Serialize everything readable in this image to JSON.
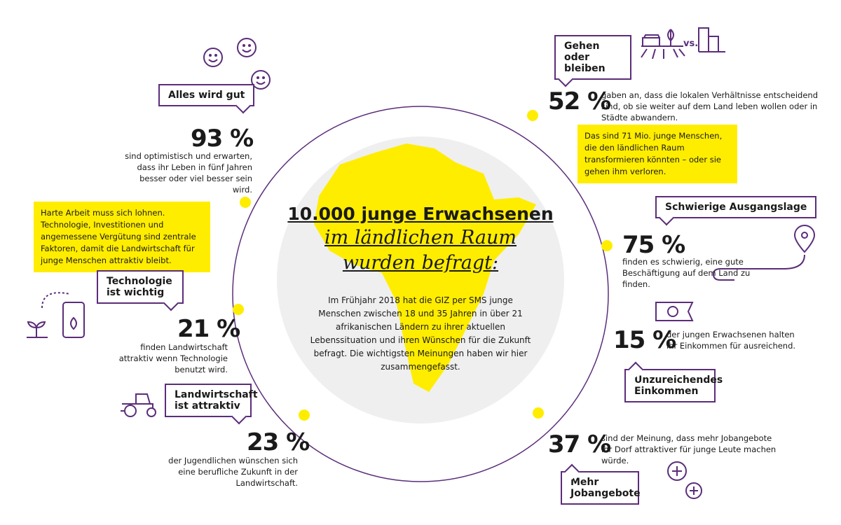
{
  "colors": {
    "accent": "#5b2d7a",
    "highlight": "#ffed00",
    "circle": "#efefef"
  },
  "center": {
    "title_line1": "10.000 junge Erwachsenen",
    "title_line2": "im ländlichen Raum",
    "title_line3": "wurden befragt:",
    "text": "Im Frühjahr 2018 hat die GIZ per SMS junge Menschen zwischen 18 und 35 Jahren in über 21 afrikanischen Ländern zu ihrer aktuellen Lebenssituation und ihren Wünschen für die Zukunft befragt. Die wichtigsten Meinungen haben wir hier zusammengefasst."
  },
  "stats": [
    {
      "label": "Alles wird gut",
      "value": "93 %",
      "text": "sind optimistisch und erwarten, dass ihr Leben in fünf Jahren besser oder viel besser sein wird.",
      "icon": "smiley-icon"
    },
    {
      "note": "Harte Arbeit muss sich lohnen. Technologie, Investitionen und angemessene Vergütung sind zentrale Faktoren, damit die Landwirtschaft für junge Menschen attraktiv bleibt."
    },
    {
      "label": "Technologie ist wichtig",
      "value": "21 %",
      "text": "finden Landwirtschaft attraktiv wenn Technologie benutzt wird.",
      "icon": "smartphone-plant-icon"
    },
    {
      "label": "Landwirtschaft ist attraktiv",
      "value": "23 %",
      "text": "der Jugendlichen wünschen sich eine berufliche Zukunft in der Landwirtschaft.",
      "icon": "tractor-icon"
    },
    {
      "label": "Gehen oder bleiben",
      "value": "52 %",
      "text": "gaben an, dass die lokalen Verhältnisse entscheidend sind, ob sie weiter auf dem Land leben wollen oder in Städte abwandern.",
      "vs": "vs.",
      "note": "Das sind 71 Mio. junge Menschen, die den ländlichen Raum transformieren könnten – oder sie gehen ihm verloren.",
      "icon": "field-vs-city-icon"
    },
    {
      "label": "Schwierige Ausgangslage",
      "value": "75 %",
      "text": "finden es schwierig, eine gute Beschäftigung auf dem Land zu finden.",
      "icon": "location-path-icon"
    },
    {
      "label": "Unzureichendes Einkommen",
      "value": "15 %",
      "text": "der jungen Erwachsenen halten ihr Einkommen für ausreichend.",
      "icon": "banknote-icon"
    },
    {
      "label": "Mehr Jobangebote",
      "value": "37 %",
      "text": "sind der Meinung, dass mehr Jobangebote ihr Dorf attraktiver für junge Leute machen würde.",
      "icon": "plus-circle-icon"
    }
  ]
}
